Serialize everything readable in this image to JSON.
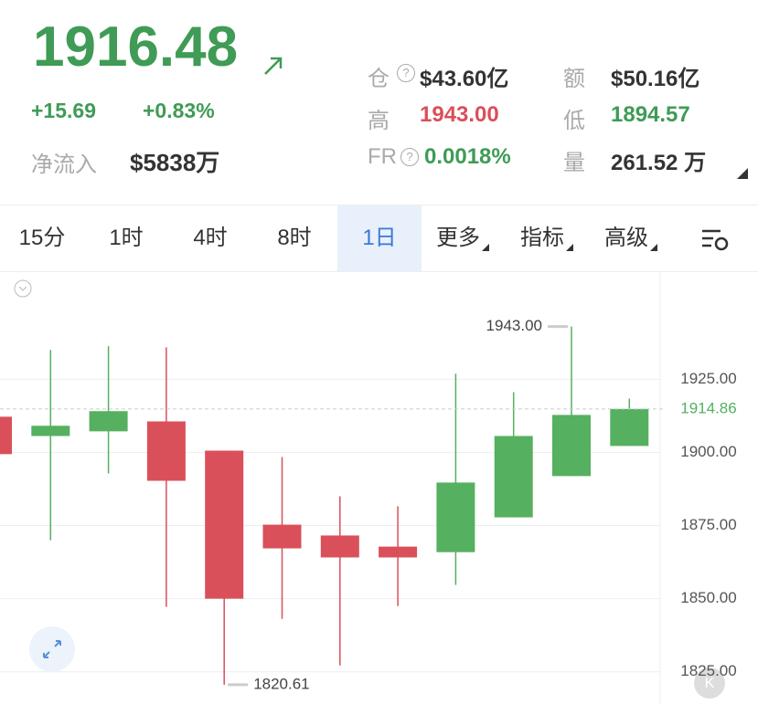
{
  "header": {
    "price": "1916.48",
    "change": "+15.69",
    "change_pct": "+0.83%",
    "net_inflow_label": "净流入",
    "net_inflow": "$5838万",
    "stats": [
      {
        "label": "仓",
        "value": "$43.60亿"
      },
      {
        "label": "额",
        "value": "$50.16亿"
      },
      {
        "label": "高",
        "value": "1943.00"
      },
      {
        "label": "低",
        "value": "1894.57"
      },
      {
        "label": "FR",
        "value": "0.0018%"
      },
      {
        "label": "量",
        "value": "261.52 万"
      }
    ]
  },
  "tabs": [
    "15分",
    "1时",
    "4时",
    "8时",
    "1日",
    "更多",
    "指标",
    "高级"
  ],
  "chart_data": {
    "type": "candlestick",
    "categories": [
      null,
      null,
      null,
      null,
      null,
      null,
      null,
      null,
      null,
      null,
      null,
      null
    ],
    "open": [
      1912.2,
      1905.6,
      1907.2,
      1910.6,
      1900.6,
      1875.3,
      1871.6,
      1867.8,
      1865.9,
      1877.8,
      1891.9,
      1902.2
    ],
    "high": [
      1912.2,
      1935,
      1936.3,
      1935.9,
      1900.6,
      1898.4,
      1885,
      1881.6,
      1926.9,
      1920.6,
      1943,
      1918.4
    ],
    "low": [
      1899.4,
      1870,
      1892.8,
      1847.2,
      1820.61,
      1843.1,
      1827.2,
      1847.5,
      1854.7,
      1877.8,
      1891.9,
      1902.2
    ],
    "close": [
      1899.4,
      1909.1,
      1914.1,
      1890.3,
      1850,
      1867.2,
      1864.1,
      1864.1,
      1889.7,
      1905.6,
      1912.8,
      1914.86
    ],
    "up_color": "#55b060",
    "down_color": "#d9505a",
    "ylim": [
      1814,
      1961
    ],
    "yticks": [
      {
        "value": 1825,
        "label": "1825.00"
      },
      {
        "value": 1850,
        "label": "1850.00"
      },
      {
        "value": 1875,
        "label": "1875.00"
      },
      {
        "value": 1900,
        "label": "1900.00"
      },
      {
        "value": 1925,
        "label": "1925.00"
      }
    ],
    "grid": true,
    "annotations": [
      {
        "value": 1943,
        "label": "1943.00"
      },
      {
        "value": 1820.61,
        "label": "1820.61"
      }
    ],
    "last_price": {
      "value": 1914.86,
      "label": "1914.86"
    }
  }
}
